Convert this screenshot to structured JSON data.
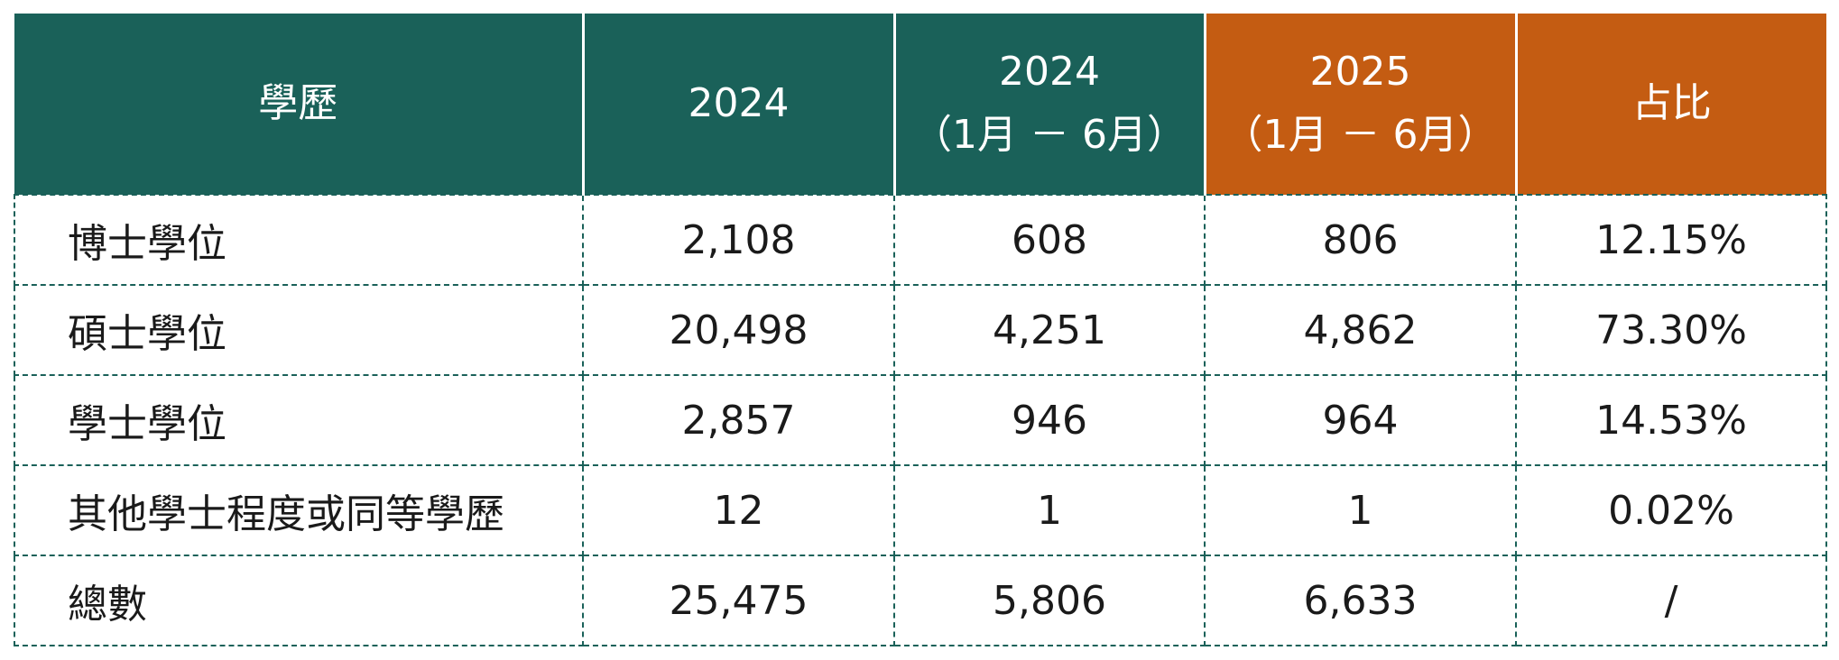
{
  "table": {
    "headers": [
      {
        "lines": [
          "學歷"
        ]
      },
      {
        "lines": [
          "2024"
        ]
      },
      {
        "lines": [
          "2024",
          "（1月 － 6月）"
        ]
      },
      {
        "lines": [
          "2025",
          "（1月 － 6月）"
        ]
      },
      {
        "lines": [
          "占比"
        ]
      }
    ],
    "rows": [
      {
        "label": "博士學位",
        "v2024": "2,108",
        "v2024h1": "608",
        "v2025h1": "806",
        "share": "12.15%"
      },
      {
        "label": "碩士學位",
        "v2024": "20,498",
        "v2024h1": "4,251",
        "v2025h1": "4,862",
        "share": "73.30%"
      },
      {
        "label": "學士學位",
        "v2024": "2,857",
        "v2024h1": "946",
        "v2025h1": "964",
        "share": "14.53%"
      },
      {
        "label": "其他學士程度或同等學歷",
        "v2024": "12",
        "v2024h1": "1",
        "v2025h1": "1",
        "share": "0.02%"
      },
      {
        "label": "總數",
        "v2024": "25,475",
        "v2024h1": "5,806",
        "v2025h1": "6,633",
        "share": "/"
      }
    ]
  },
  "colors": {
    "header_teal": "#1a6159",
    "header_orange": "#c45c12",
    "border": "#1a6159"
  }
}
